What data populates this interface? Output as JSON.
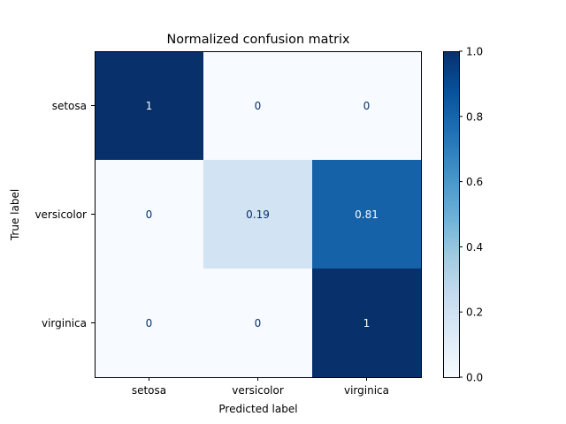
{
  "chart_data": {
    "type": "heatmap",
    "title": "Normalized confusion matrix",
    "xlabel": "Predicted label",
    "ylabel": "True label",
    "x_categories": [
      "setosa",
      "versicolor",
      "virginica"
    ],
    "y_categories": [
      "setosa",
      "versicolor",
      "virginica"
    ],
    "values": [
      [
        1,
        0,
        0
      ],
      [
        0,
        0.19,
        0.81
      ],
      [
        0,
        0,
        1
      ]
    ],
    "cell_labels": [
      [
        "1",
        "0",
        "0"
      ],
      [
        "0",
        "0.19",
        "0.81"
      ],
      [
        "0",
        "0",
        "1"
      ]
    ],
    "colorbar": {
      "range": [
        0.0,
        1.0
      ],
      "ticks": [
        0.0,
        0.2,
        0.4,
        0.6,
        0.8,
        1.0
      ],
      "tick_labels": [
        "0.0",
        "0.2",
        "0.4",
        "0.6",
        "0.8",
        "1.0"
      ],
      "colormap": "Blues"
    },
    "grid": false
  }
}
